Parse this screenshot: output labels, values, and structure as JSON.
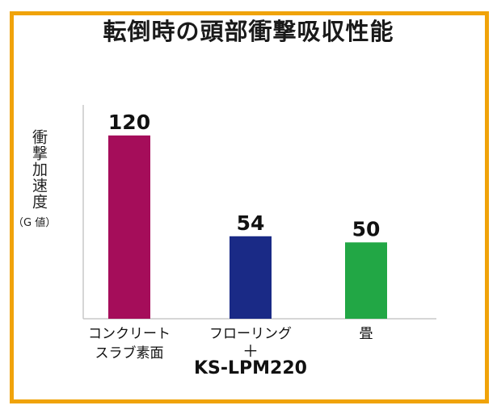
{
  "title": "転倒時の頭部衝撃吸収性能",
  "chart_data": {
    "type": "bar",
    "title": "転倒時の頭部衝撃吸収性能",
    "ylabel": "衝撃加速度",
    "yunit": "（G 値）",
    "categories": [
      "コンクリートスラブ素面",
      "フローリング＋KS-LPM220",
      "畳"
    ],
    "category_lines": [
      [
        "コンクリート",
        "スラブ素面"
      ],
      [
        "フローリング",
        "＋",
        "KS-LPM220"
      ],
      [
        "畳"
      ]
    ],
    "values": [
      120,
      54,
      50
    ],
    "colors": [
      "#a50d5a",
      "#1a2a86",
      "#22a745"
    ],
    "data_labels": [
      "120",
      "54",
      "50"
    ],
    "ylim": [
      0,
      140
    ],
    "grid": false
  }
}
